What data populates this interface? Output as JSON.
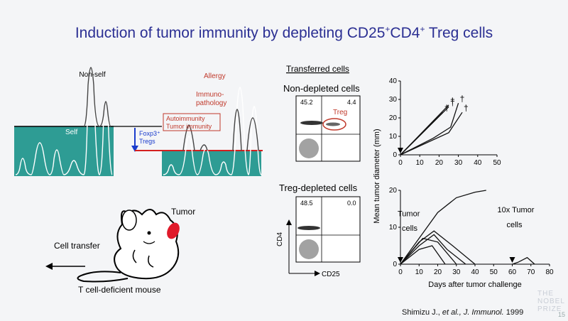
{
  "slide": {
    "title_main": "Induction of tumor immunity by depleting CD25",
    "title_sup1": "+",
    "title_mid": "CD4",
    "title_sup2": "+",
    "title_end": " Treg cells"
  },
  "immune_diagram": {
    "non_self": "Non-self",
    "self": "Self",
    "foxp3": "Foxp3⁺",
    "tregs": "Tregs",
    "allergy": "Allergy",
    "immuno": "Immuno-",
    "pathology": "pathology",
    "autoimmunity": "Autoimmunity",
    "tumor_immunity": "Tumor immunity",
    "colors": {
      "teal": "#2e9c94",
      "red": "#d42020",
      "blue": "#1a3ccc",
      "orange_text": "#c0392b"
    }
  },
  "mouse": {
    "tumor": "Tumor",
    "cell_transfer": "Cell transfer",
    "caption": "T cell-deficient mouse"
  },
  "flow": {
    "header": "Transferred cells",
    "non_depleted": "Non-depleted cells",
    "treg_depleted": "Treg-depleted cells",
    "top_left_pct": "45.2",
    "top_right_pct": "4.4",
    "treg_label": "Treg",
    "bottom_left_pct": "48.5",
    "bottom_right_pct": "0.0",
    "y_axis": "CD4",
    "x_axis": "CD25"
  },
  "chart_data": [
    {
      "type": "line",
      "xlim": [
        0,
        50
      ],
      "ylim": [
        0,
        40
      ],
      "x_ticks": [
        "0",
        "10",
        "20",
        "30",
        "40",
        "50"
      ],
      "y_ticks": [
        "0",
        "10",
        "20",
        "30",
        "40"
      ],
      "series": [
        {
          "x": [
            0,
            25
          ],
          "y": [
            0,
            27
          ]
        },
        {
          "x": [
            0,
            25
          ],
          "y": [
            0,
            26
          ]
        },
        {
          "x": [
            0,
            22
          ],
          "y": [
            0,
            23
          ]
        },
        {
          "x": [
            0,
            17,
            26,
            30
          ],
          "y": [
            0,
            9,
            15,
            28
          ]
        },
        {
          "x": [
            0,
            25,
            32
          ],
          "y": [
            0,
            12,
            23
          ]
        }
      ],
      "daggers": [
        "†",
        "†",
        "†",
        "†",
        "†"
      ]
    },
    {
      "type": "line",
      "xlim": [
        0,
        80
      ],
      "ylim": [
        0,
        20
      ],
      "x_ticks": [
        "0",
        "10",
        "20",
        "30",
        "40",
        "50",
        "60",
        "70",
        "80"
      ],
      "y_ticks": [
        "0",
        "10",
        "20"
      ],
      "xlabel": "Days after tumor challenge",
      "shared_ylabel": "Mean tumor diameter (mm)",
      "annotations": [
        "Tumor",
        "cells",
        "10x Tumor",
        "cells"
      ],
      "series": [
        {
          "x": [
            0,
            10,
            20,
            30,
            40,
            46
          ],
          "y": [
            0,
            7,
            14,
            18,
            19.5,
            20
          ]
        },
        {
          "x": [
            0,
            10,
            18,
            25,
            35
          ],
          "y": [
            0,
            5,
            8,
            4,
            0
          ]
        },
        {
          "x": [
            0,
            10,
            18,
            28,
            40
          ],
          "y": [
            0,
            6,
            9,
            5,
            0
          ]
        },
        {
          "x": [
            0,
            12,
            20,
            30
          ],
          "y": [
            0,
            7,
            6,
            0
          ]
        },
        {
          "x": [
            0,
            10,
            17,
            24
          ],
          "y": [
            0,
            4,
            5,
            0
          ]
        },
        {
          "x": [
            60,
            63,
            68,
            72
          ],
          "y": [
            0,
            0.5,
            1.8,
            0
          ]
        }
      ]
    }
  ],
  "citation": {
    "authors": "Shimizu J., ",
    "etal": "et al., J. Immunol.",
    "year": " 1999"
  },
  "nobel": {
    "line1": "THE",
    "line2": "NOBEL",
    "line3": "PRIZE",
    "page": "15"
  }
}
